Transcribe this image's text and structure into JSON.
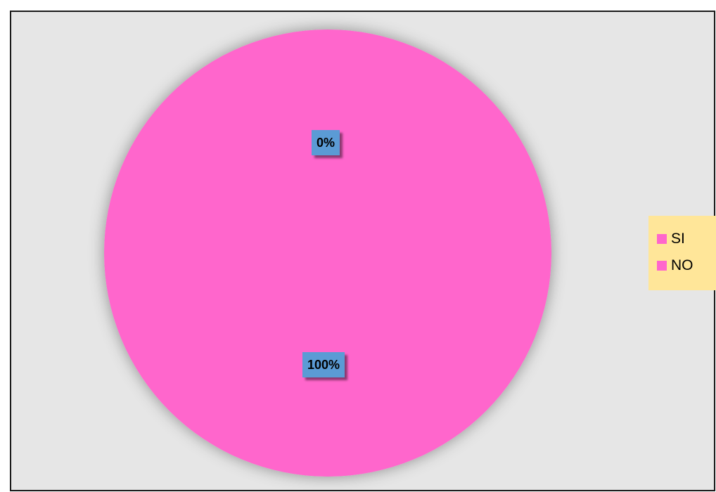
{
  "chart_data": {
    "type": "pie",
    "categories": [
      "SI",
      "NO"
    ],
    "values": [
      0,
      100
    ],
    "data_labels": [
      "0%",
      "100%"
    ],
    "colors": {
      "SI": "#ff66cc",
      "NO": "#ff66cc",
      "plot_background": "#e6e6e6",
      "label_background": "#5b9bd5",
      "legend_background": "#ffe699"
    },
    "legend": {
      "placement": "right",
      "items": [
        "SI",
        "NO"
      ]
    }
  }
}
